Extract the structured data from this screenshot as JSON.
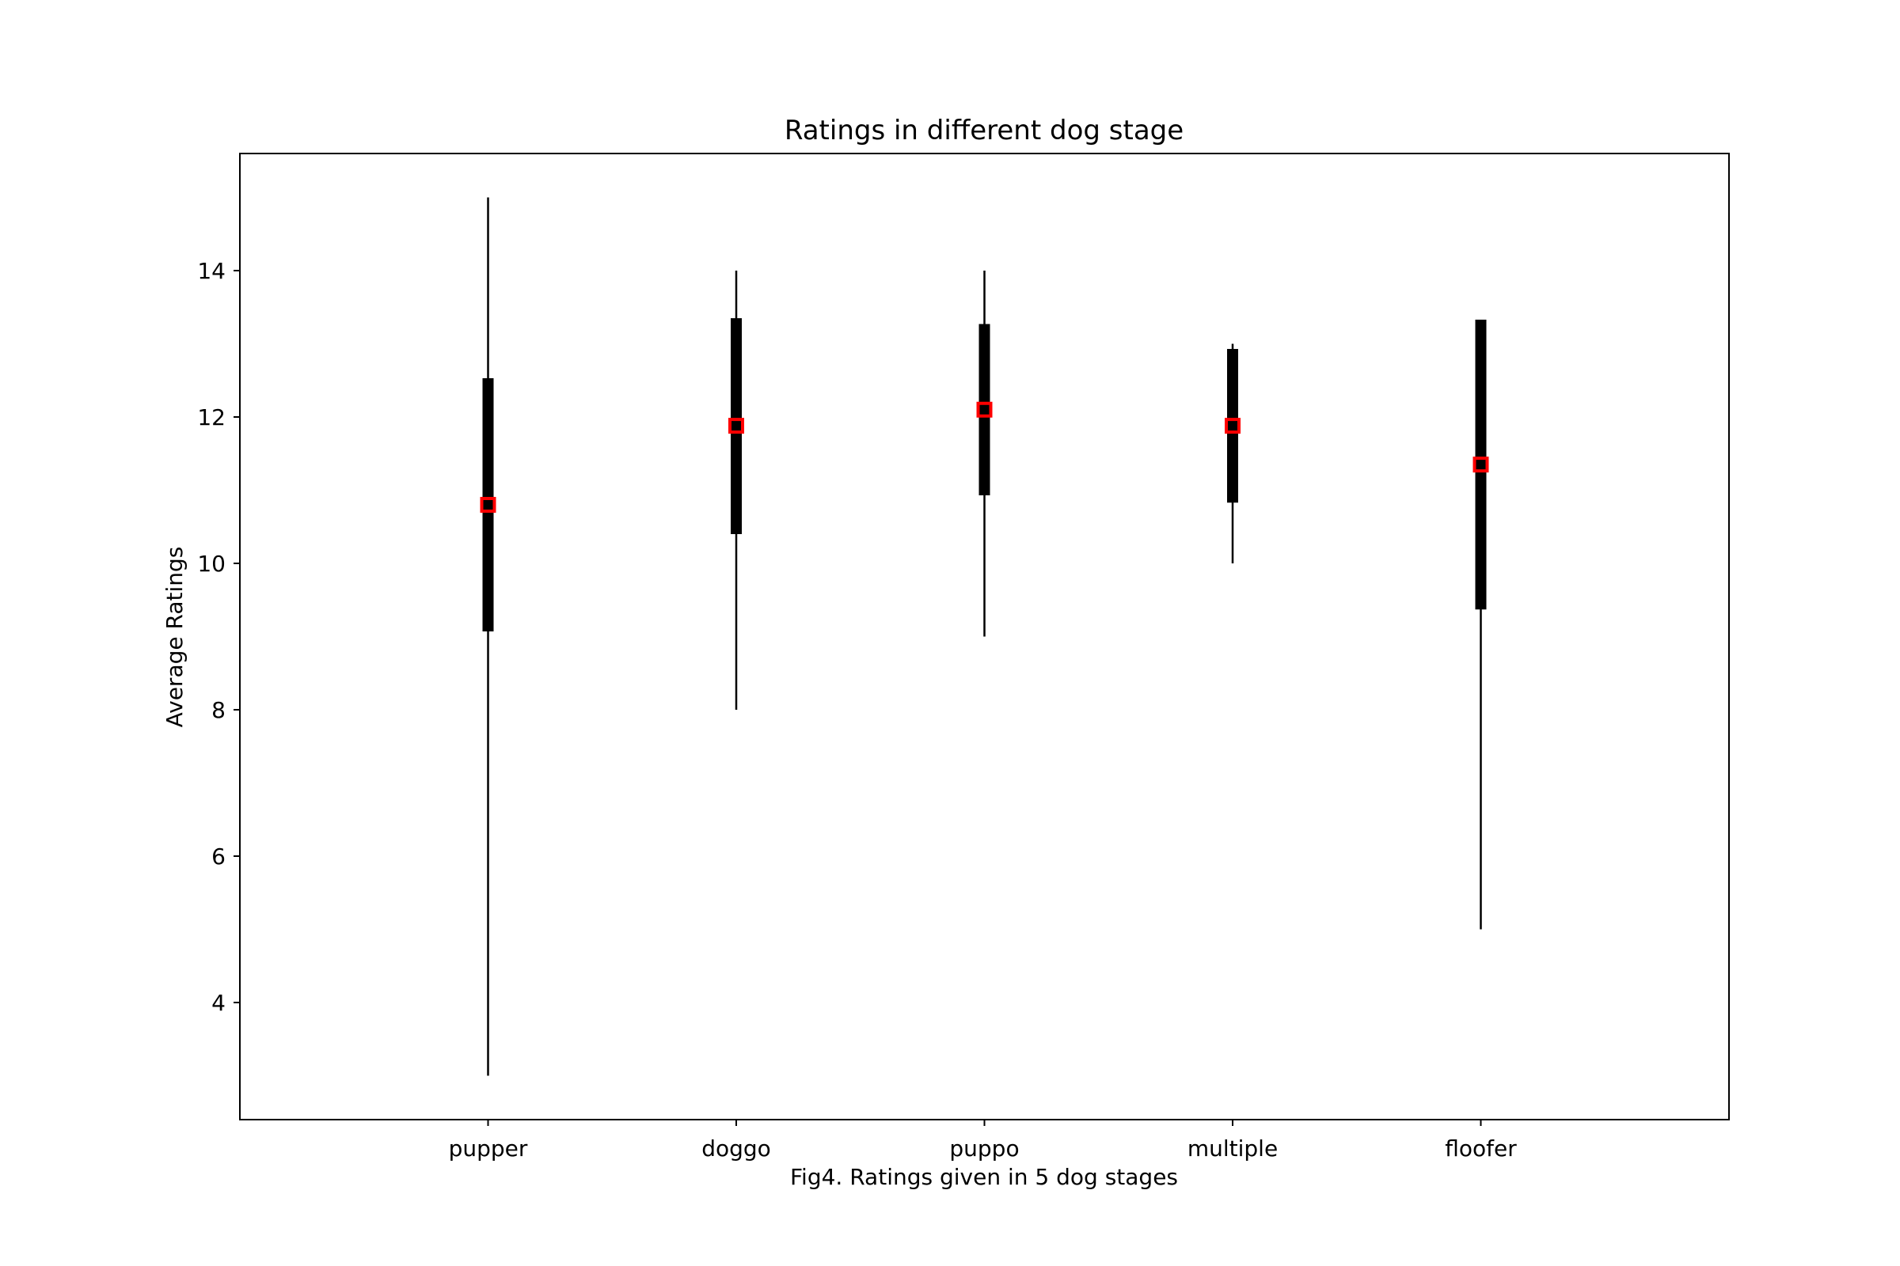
{
  "chart_data": {
    "type": "errorbar",
    "title": "Ratings in different dog stage",
    "xlabel": "Fig4. Ratings given in 5 dog stages",
    "ylabel": "Average Ratings",
    "categories": [
      "pupper",
      "doggo",
      "puppo",
      "multiple",
      "floofer"
    ],
    "mean": [
      10.8,
      11.88,
      12.1,
      11.88,
      11.35
    ],
    "std_low": [
      9.07,
      10.4,
      10.93,
      10.83,
      9.37
    ],
    "std_high": [
      12.53,
      13.35,
      13.27,
      12.93,
      13.33
    ],
    "min": [
      3,
      8,
      9,
      10,
      5
    ],
    "max": [
      15,
      14,
      14,
      13,
      13.33
    ],
    "ylim": [
      2.4,
      15.6
    ],
    "xlim": [
      -1,
      5
    ],
    "yticks": [
      4,
      6,
      8,
      10,
      12,
      14
    ],
    "grid": false,
    "colors": {
      "line": "#000000",
      "marker_edge": "#ff0000",
      "marker_face": "#000000"
    }
  }
}
